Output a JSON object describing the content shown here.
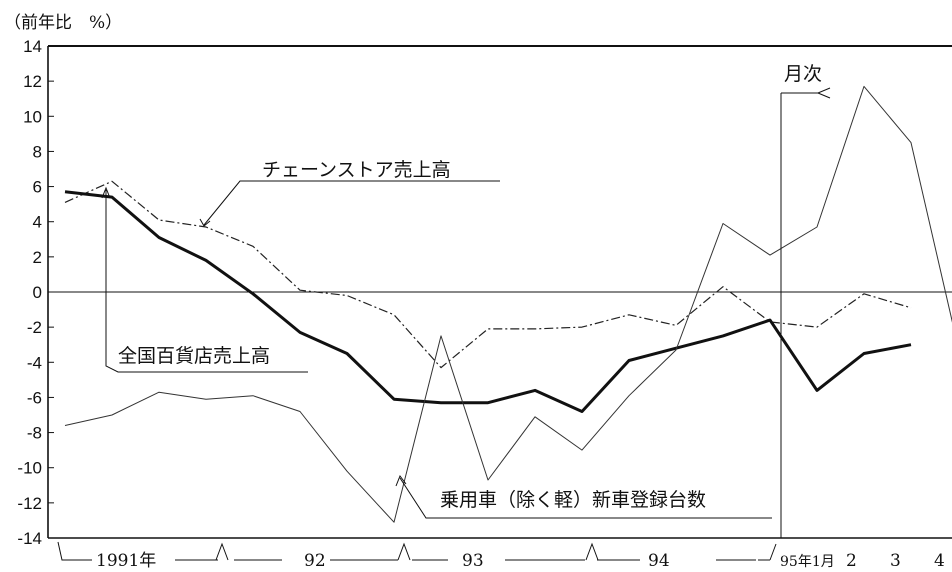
{
  "chart_data": {
    "type": "line",
    "unit_label": "（前年比　%）",
    "ylim": [
      -14,
      14
    ],
    "yticks": [
      14,
      12,
      10,
      8,
      6,
      4,
      2,
      0,
      -2,
      -4,
      -6,
      -8,
      -10,
      -12,
      -14
    ],
    "x_labels": [
      "1991年",
      "92",
      "93",
      "94",
      "95年1月",
      "2",
      "3",
      "4"
    ],
    "monthly_marker_label": "月次",
    "series": [
      {
        "name": "チェーンストア売上高",
        "style": "dash-dot",
        "values": [
          5.1,
          6.3,
          4.1,
          3.7,
          2.6,
          0.1,
          -0.2,
          -1.3,
          -4.3,
          -2.1,
          -2.1,
          -2.0,
          -1.3,
          -1.9,
          0.3,
          -1.7,
          -2.0,
          -0.1,
          -0.9
        ]
      },
      {
        "name": "全国百貨店売上高",
        "style": "bold",
        "values": [
          5.7,
          5.4,
          3.1,
          1.8,
          -0.1,
          -2.3,
          -3.5,
          -6.1,
          -6.3,
          -6.3,
          -5.6,
          -6.8,
          -3.9,
          -3.2,
          -2.5,
          -1.6,
          -5.6,
          -3.5,
          -3.0
        ]
      },
      {
        "name": "乗用車（除く軽）新車登録台数",
        "style": "thin",
        "values": [
          -7.6,
          -7.0,
          -5.7,
          -6.1,
          -5.9,
          -6.8,
          -10.2,
          -13.1,
          -2.5,
          -10.7,
          -7.1,
          -9.0,
          -5.9,
          -3.3,
          3.9,
          2.1,
          3.7,
          11.7,
          8.5,
          -3.1
        ]
      }
    ]
  }
}
